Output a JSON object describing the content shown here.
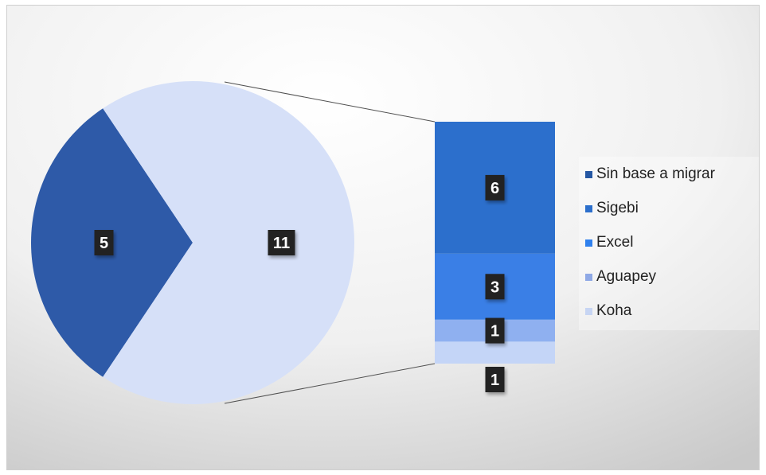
{
  "chart_data": {
    "type": "bar-of-pie",
    "pie": {
      "slices": [
        {
          "label": "5",
          "value": 5,
          "color": "#2e5aa8"
        },
        {
          "label": "11",
          "value": 11,
          "color": "#d6e0f8"
        }
      ]
    },
    "bar": {
      "segments": [
        {
          "name": "Sin base a migrar",
          "value": 1,
          "label": "1",
          "color": "#c4d5f7"
        },
        {
          "name": "Aguapey",
          "value": 1,
          "label": "1",
          "color": "#8fb0f0"
        },
        {
          "name": "Excel",
          "value": 3,
          "label": "3",
          "color": "#3a7fe6"
        },
        {
          "name": "Sigebi",
          "value": 6,
          "label": "6",
          "color": "#2c6fcc"
        }
      ]
    },
    "legend": {
      "position": "right",
      "entries": [
        {
          "label": "Sin base a migrar",
          "color": "#2557a3"
        },
        {
          "label": "Sigebi",
          "color": "#2c6fcc"
        },
        {
          "label": "Excel",
          "color": "#2f80ed"
        },
        {
          "label": "Aguapey",
          "color": "#8fa9e6"
        },
        {
          "label": "Koha",
          "color": "#c7d5f3"
        }
      ]
    },
    "label_style": {
      "background": "#222222",
      "color": "#ffffff"
    }
  }
}
